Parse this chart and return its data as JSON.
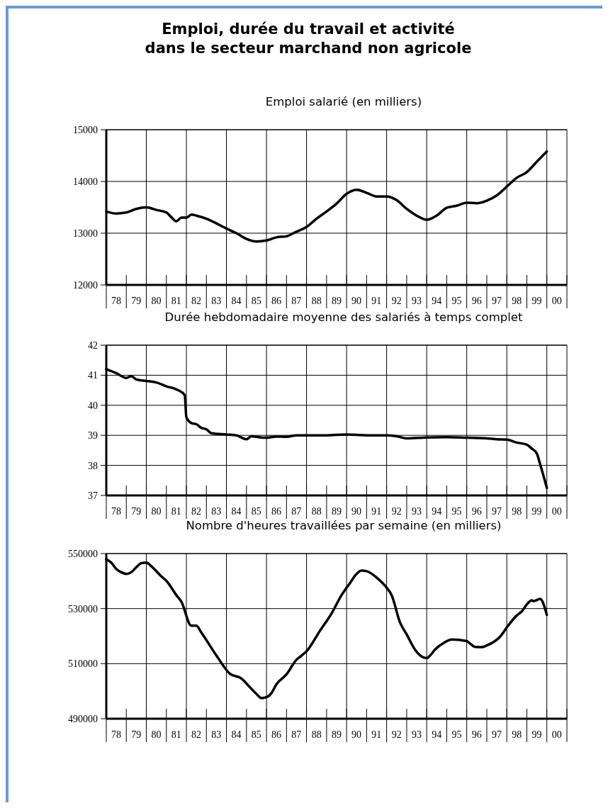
{
  "chart_data": [
    {
      "type": "line",
      "title": "Emploi, durée du travail et activité\ndans le secteur marchand non agricole",
      "subtitle": "Emploi salarié (en milliers)",
      "color": "#000000",
      "x": [
        "1978",
        "1978-07",
        "1979",
        "1979-07",
        "1980",
        "1980-07",
        "1981",
        "1981-04",
        "1981-07",
        "1981-10",
        "1982",
        "1982-04",
        "1982-07",
        "1983",
        "1983-07",
        "1984",
        "1984-07",
        "1985",
        "1985-07",
        "1986",
        "1986-07",
        "1987",
        "1987-07",
        "1988",
        "1988-07",
        "1989",
        "1989-07",
        "1990",
        "1990-07",
        "1991",
        "1991-07",
        "1992",
        "1992-07",
        "1993",
        "1993-07",
        "1994",
        "1994-07",
        "1995",
        "1995-07",
        "1996",
        "1996-07",
        "1997",
        "1997-07",
        "1998",
        "1998-07",
        "1999",
        "1999-07",
        "2000"
      ],
      "values": [
        13420,
        13380,
        13400,
        13470,
        13500,
        13450,
        13400,
        13310,
        13230,
        13300,
        13300,
        13360,
        13340,
        13280,
        13190,
        13090,
        13000,
        12890,
        12840,
        12860,
        12920,
        12940,
        13030,
        13120,
        13280,
        13420,
        13570,
        13760,
        13840,
        13780,
        13710,
        13710,
        13640,
        13470,
        13340,
        13260,
        13340,
        13490,
        13530,
        13590,
        13580,
        13630,
        13730,
        13900,
        14070,
        14180,
        14380,
        14580
      ],
      "xlim": [
        "1978",
        "2001"
      ],
      "ylim": [
        12000,
        15000
      ],
      "yticks": [
        12000,
        13000,
        14000,
        15000
      ],
      "grid": true,
      "xticks": [
        {
          "value": "1978-07",
          "label": "78"
        },
        {
          "value": "1979-07",
          "label": "79"
        },
        {
          "value": "1980-07",
          "label": "80"
        },
        {
          "value": "1981-07",
          "label": "81"
        },
        {
          "value": "1982-07",
          "label": "82"
        },
        {
          "value": "1983-07",
          "label": "83"
        },
        {
          "value": "1984-07",
          "label": "84"
        },
        {
          "value": "1985-07",
          "label": "85"
        },
        {
          "value": "1986-07",
          "label": "86"
        },
        {
          "value": "1987-07",
          "label": "87"
        },
        {
          "value": "1988-07",
          "label": "88"
        },
        {
          "value": "1989-07",
          "label": "89"
        },
        {
          "value": "1990-07",
          "label": "90"
        },
        {
          "value": "1991-07",
          "label": "91"
        },
        {
          "value": "1992-07",
          "label": "92"
        },
        {
          "value": "1993-07",
          "label": "93"
        },
        {
          "value": "1994-07",
          "label": "94"
        },
        {
          "value": "1995-07",
          "label": "95"
        },
        {
          "value": "1996-07",
          "label": "96"
        },
        {
          "value": "1997-07",
          "label": "97"
        },
        {
          "value": "1998-07",
          "label": "98"
        },
        {
          "value": "1999-07",
          "label": "99"
        },
        {
          "value": "2000-07",
          "label": "00"
        },
        {
          "value": "1978",
          "label": null
        },
        {
          "value": "1979",
          "label": null
        },
        {
          "value": "1980",
          "label": null
        },
        {
          "value": "1981",
          "label": null
        },
        {
          "value": "1982",
          "label": null
        },
        {
          "value": "1983",
          "label": null
        },
        {
          "value": "1984",
          "label": null
        },
        {
          "value": "1985",
          "label": null
        },
        {
          "value": "1986",
          "label": null
        },
        {
          "value": "1987",
          "label": null
        },
        {
          "value": "1988",
          "label": null
        },
        {
          "value": "1989",
          "label": null
        },
        {
          "value": "1990",
          "label": null
        },
        {
          "value": "1991",
          "label": null
        },
        {
          "value": "1992",
          "label": null
        },
        {
          "value": "1993",
          "label": null
        },
        {
          "value": "1994",
          "label": null
        },
        {
          "value": "1995",
          "label": null
        },
        {
          "value": "1996",
          "label": null
        },
        {
          "value": "1997",
          "label": null
        },
        {
          "value": "1998",
          "label": null
        },
        {
          "value": "1999",
          "label": null
        },
        {
          "value": "2000",
          "label": null
        },
        {
          "value": "2001",
          "label": null
        }
      ]
    },
    {
      "type": "line",
      "title": "Durée hebdomadaire moyenne des salariés à temps complet",
      "color": "#000000",
      "x": [
        "1978",
        "1978-07",
        "1979",
        "1979-04",
        "1979-07",
        "1980",
        "1980-07",
        "1981",
        "1981-07",
        "1981-12",
        "1982",
        "1982-04",
        "1982-07",
        "1982-10",
        "1983",
        "1983-04",
        "1984",
        "1984-07",
        "1985",
        "1985-04",
        "1985-07",
        "1986",
        "1986-07",
        "1987",
        "1987-07",
        "1988",
        "1989",
        "1990",
        "1991",
        "1992",
        "1992-07",
        "1993",
        "1994",
        "1995",
        "1996",
        "1997",
        "1997-07",
        "1998",
        "1998-07",
        "1999",
        "1999-04",
        "1999-07",
        "1999-09",
        "2000"
      ],
      "values": [
        41.2,
        41.07,
        40.91,
        40.97,
        40.86,
        40.81,
        40.76,
        40.63,
        40.53,
        40.34,
        39.6,
        39.41,
        39.37,
        39.25,
        39.2,
        39.07,
        39.03,
        39.0,
        38.87,
        38.97,
        38.95,
        38.92,
        38.96,
        38.95,
        39.0,
        39.0,
        39.0,
        39.03,
        39.0,
        39.0,
        38.97,
        38.9,
        38.93,
        38.94,
        38.92,
        38.9,
        38.87,
        38.86,
        38.76,
        38.69,
        38.56,
        38.4,
        38.04,
        37.25
      ],
      "xlim": [
        "1978",
        "2001"
      ],
      "ylim": [
        37,
        42
      ],
      "yticks": [
        37,
        38,
        39,
        40,
        41,
        42
      ],
      "grid": true,
      "xticks": [
        {
          "value": "1978-07",
          "label": "78"
        },
        {
          "value": "1979-07",
          "label": "79"
        },
        {
          "value": "1980-07",
          "label": "80"
        },
        {
          "value": "1981-07",
          "label": "81"
        },
        {
          "value": "1982-07",
          "label": "82"
        },
        {
          "value": "1983-07",
          "label": "83"
        },
        {
          "value": "1984-07",
          "label": "84"
        },
        {
          "value": "1985-07",
          "label": "85"
        },
        {
          "value": "1986-07",
          "label": "86"
        },
        {
          "value": "1987-07",
          "label": "87"
        },
        {
          "value": "1988-07",
          "label": "88"
        },
        {
          "value": "1989-07",
          "label": "89"
        },
        {
          "value": "1990-07",
          "label": "90"
        },
        {
          "value": "1991-07",
          "label": "91"
        },
        {
          "value": "1992-07",
          "label": "92"
        },
        {
          "value": "1993-07",
          "label": "93"
        },
        {
          "value": "1994-07",
          "label": "94"
        },
        {
          "value": "1995-07",
          "label": "95"
        },
        {
          "value": "1996-07",
          "label": "96"
        },
        {
          "value": "1997-07",
          "label": "97"
        },
        {
          "value": "1998-07",
          "label": "98"
        },
        {
          "value": "1999-07",
          "label": "99"
        },
        {
          "value": "2000-07",
          "label": "00"
        },
        {
          "value": "1978",
          "label": null
        },
        {
          "value": "1979",
          "label": null
        },
        {
          "value": "1980",
          "label": null
        },
        {
          "value": "1981",
          "label": null
        },
        {
          "value": "1982",
          "label": null
        },
        {
          "value": "1983",
          "label": null
        },
        {
          "value": "1984",
          "label": null
        },
        {
          "value": "1985",
          "label": null
        },
        {
          "value": "1986",
          "label": null
        },
        {
          "value": "1987",
          "label": null
        },
        {
          "value": "1988",
          "label": null
        },
        {
          "value": "1989",
          "label": null
        },
        {
          "value": "1990",
          "label": null
        },
        {
          "value": "1991",
          "label": null
        },
        {
          "value": "1992",
          "label": null
        },
        {
          "value": "1993",
          "label": null
        },
        {
          "value": "1994",
          "label": null
        },
        {
          "value": "1995",
          "label": null
        },
        {
          "value": "1996",
          "label": null
        },
        {
          "value": "1997",
          "label": null
        },
        {
          "value": "1998",
          "label": null
        },
        {
          "value": "1999",
          "label": null
        },
        {
          "value": "2000",
          "label": null
        },
        {
          "value": "2001",
          "label": null
        }
      ]
    },
    {
      "type": "line",
      "title": "Nombre d'heures travaillées par semaine (en milliers)",
      "color": "#000000",
      "x": [
        "1978",
        "1978-04",
        "1978-07",
        "1978-10",
        "1979",
        "1979-04",
        "1979-07",
        "1979-10",
        "1980",
        "1980-04",
        "1980-10",
        "1981",
        "1981-07",
        "1981-10",
        "1982-04",
        "1982-07",
        "1982-10",
        "1983-07",
        "1984-03",
        "1984-10",
        "1985-03",
        "1985-07",
        "1985-10",
        "1986",
        "1986-04",
        "1986-07",
        "1987",
        "1987-07",
        "1987-10",
        "1988-01",
        "1988-09",
        "1989-04",
        "1989-10",
        "1990-03",
        "1990-07",
        "1990-10",
        "1991",
        "1991-07",
        "1992",
        "1992-04",
        "1992-09",
        "1993",
        "1993-06",
        "1993-10",
        "1994",
        "1994-03",
        "1994-06",
        "1994-12",
        "1995-04",
        "1996",
        "1996-03",
        "1996-06",
        "1996-10",
        "1997",
        "1997-09",
        "1998-02",
        "1998-07",
        "1998-10",
        "1999",
        "1999-04",
        "1999-05",
        "1999-09",
        "2000"
      ],
      "values": [
        547900,
        546700,
        544400,
        543200,
        542600,
        543200,
        545000,
        546500,
        546700,
        545400,
        541700,
        540100,
        534900,
        532500,
        523800,
        523800,
        521300,
        513000,
        506400,
        504600,
        501500,
        499000,
        497500,
        497800,
        499300,
        502500,
        506100,
        511400,
        512900,
        514500,
        521900,
        528200,
        534900,
        539200,
        542600,
        543800,
        543600,
        541300,
        537600,
        534900,
        525000,
        520600,
        515100,
        512600,
        512000,
        512900,
        515100,
        517800,
        518800,
        518200,
        517300,
        516100,
        516000,
        516600,
        519800,
        524000,
        527500,
        529000,
        531500,
        533000,
        532700,
        533500,
        527700
      ],
      "xlim": [
        "1978",
        "2001"
      ],
      "ylim": [
        490000,
        550000
      ],
      "yticks": [
        490000,
        510000,
        530000,
        550000
      ],
      "grid": true,
      "xticks": [
        {
          "value": "1978-07",
          "label": "78"
        },
        {
          "value": "1979-07",
          "label": "79"
        },
        {
          "value": "1980-07",
          "label": "80"
        },
        {
          "value": "1981-07",
          "label": "81"
        },
        {
          "value": "1982-07",
          "label": "82"
        },
        {
          "value": "1983-07",
          "label": "83"
        },
        {
          "value": "1984-07",
          "label": "84"
        },
        {
          "value": "1985-07",
          "label": "85"
        },
        {
          "value": "1986-07",
          "label": "86"
        },
        {
          "value": "1987-07",
          "label": "87"
        },
        {
          "value": "1988-07",
          "label": "88"
        },
        {
          "value": "1989-07",
          "label": "89"
        },
        {
          "value": "1990-07",
          "label": "90"
        },
        {
          "value": "1991-07",
          "label": "91"
        },
        {
          "value": "1992-07",
          "label": "92"
        },
        {
          "value": "1993-07",
          "label": "93"
        },
        {
          "value": "1994-07",
          "label": "94"
        },
        {
          "value": "1995-07",
          "label": "95"
        },
        {
          "value": "1996-07",
          "label": "96"
        },
        {
          "value": "1997-07",
          "label": "97"
        },
        {
          "value": "1998-07",
          "label": "98"
        },
        {
          "value": "1999-07",
          "label": "99"
        },
        {
          "value": "2000-07",
          "label": "00"
        },
        {
          "value": "1978",
          "label": null
        },
        {
          "value": "1979",
          "label": null
        },
        {
          "value": "1980",
          "label": null
        },
        {
          "value": "1981",
          "label": null
        },
        {
          "value": "1982",
          "label": null
        },
        {
          "value": "1983",
          "label": null
        },
        {
          "value": "1984",
          "label": null
        },
        {
          "value": "1985",
          "label": null
        },
        {
          "value": "1986",
          "label": null
        },
        {
          "value": "1987",
          "label": null
        },
        {
          "value": "1988",
          "label": null
        },
        {
          "value": "1989",
          "label": null
        },
        {
          "value": "1990",
          "label": null
        },
        {
          "value": "1991",
          "label": null
        },
        {
          "value": "1992",
          "label": null
        },
        {
          "value": "1993",
          "label": null
        },
        {
          "value": "1994",
          "label": null
        },
        {
          "value": "1995",
          "label": null
        },
        {
          "value": "1996",
          "label": null
        },
        {
          "value": "1997",
          "label": null
        },
        {
          "value": "1998",
          "label": null
        },
        {
          "value": "1999",
          "label": null
        },
        {
          "value": "2000",
          "label": null
        },
        {
          "value": "2001",
          "label": null
        }
      ]
    }
  ]
}
